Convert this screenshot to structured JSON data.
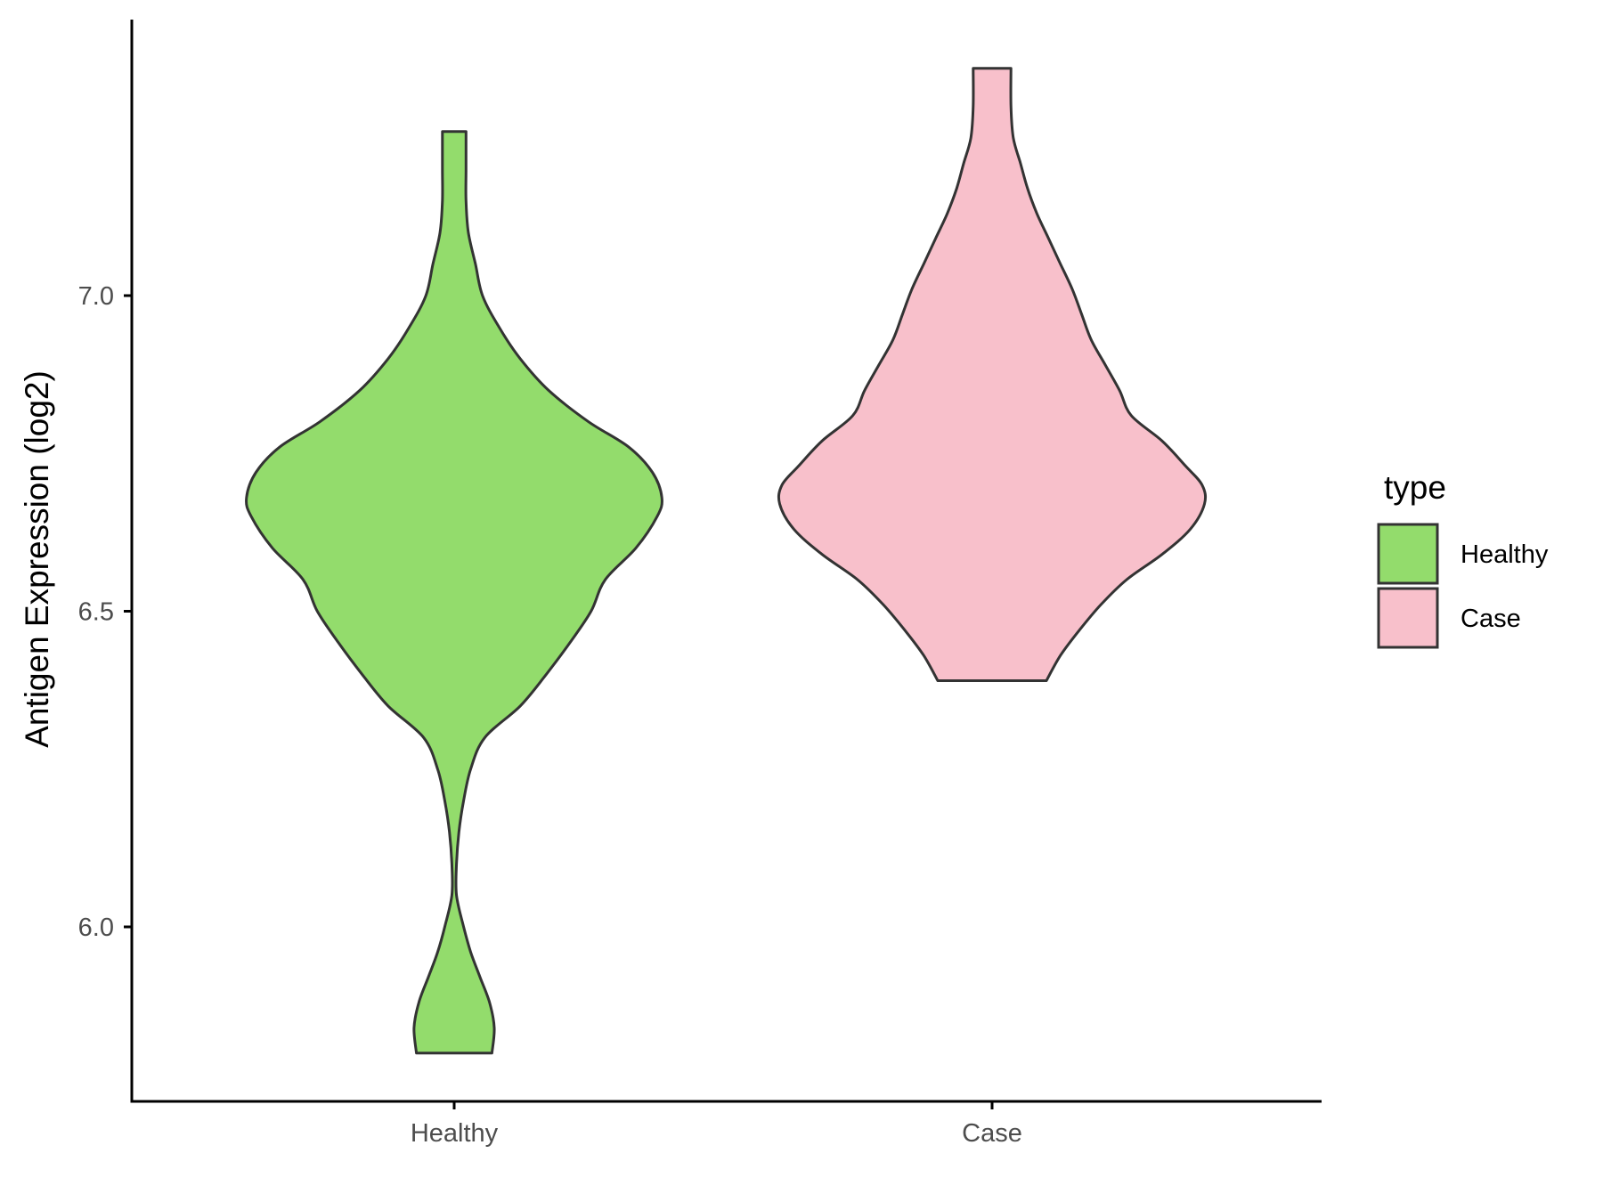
{
  "chart_data": {
    "type": "violin",
    "title": "",
    "xlabel": "",
    "ylabel": "Antigen Expression (log2)",
    "ylim": [
      5.72,
      7.43
    ],
    "y_ticks": [
      6.0,
      6.5,
      7.0
    ],
    "y_tick_labels": [
      "6.0",
      "6.5",
      "7.0"
    ],
    "categories": [
      "Healthy",
      "Case"
    ],
    "grid": false,
    "legend": {
      "title": "type",
      "position": "right",
      "entries": [
        "Healthy",
        "Case"
      ]
    },
    "series": [
      {
        "category": "Healthy",
        "color": "#93DC6C",
        "min": 5.8,
        "max": 7.26,
        "density_profile": {
          "y": [
            5.8,
            5.84,
            5.88,
            5.92,
            5.96,
            6.0,
            6.05,
            6.1,
            6.15,
            6.2,
            6.25,
            6.3,
            6.35,
            6.4,
            6.45,
            6.5,
            6.55,
            6.6,
            6.65,
            6.68,
            6.72,
            6.76,
            6.8,
            6.85,
            6.9,
            6.95,
            7.0,
            7.05,
            7.1,
            7.15,
            7.2,
            7.26
          ],
          "half_width": [
            0.16,
            0.17,
            0.15,
            0.11,
            0.07,
            0.04,
            0.01,
            0.01,
            0.02,
            0.04,
            0.07,
            0.13,
            0.28,
            0.39,
            0.49,
            0.58,
            0.64,
            0.77,
            0.86,
            0.88,
            0.84,
            0.74,
            0.57,
            0.4,
            0.28,
            0.19,
            0.12,
            0.09,
            0.06,
            0.05,
            0.05,
            0.05
          ]
        }
      },
      {
        "category": "Case",
        "color": "#F8C0CB",
        "min": 6.39,
        "max": 7.36,
        "density_profile": {
          "y": [
            6.39,
            6.43,
            6.47,
            6.51,
            6.55,
            6.59,
            6.63,
            6.67,
            6.7,
            6.73,
            6.77,
            6.81,
            6.85,
            6.89,
            6.93,
            6.97,
            7.01,
            7.05,
            7.09,
            7.13,
            7.17,
            7.21,
            7.25,
            7.3,
            7.36
          ],
          "half_width": [
            0.23,
            0.29,
            0.37,
            0.46,
            0.57,
            0.72,
            0.84,
            0.9,
            0.89,
            0.82,
            0.72,
            0.59,
            0.54,
            0.48,
            0.42,
            0.38,
            0.34,
            0.29,
            0.24,
            0.19,
            0.15,
            0.12,
            0.09,
            0.08,
            0.08
          ]
        }
      }
    ]
  }
}
